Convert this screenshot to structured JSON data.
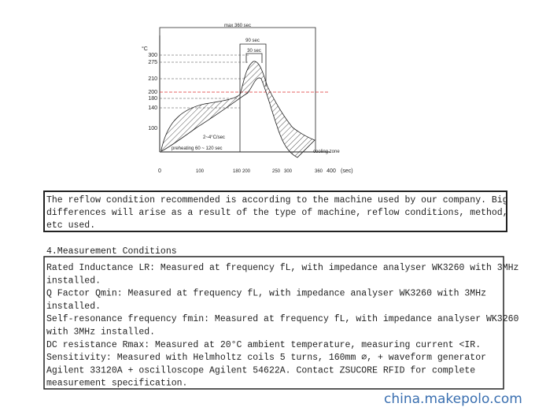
{
  "diagram": {
    "max_label": "max 360 sec",
    "p90_label": "90 sec",
    "p30_label": "30 sec",
    "y_unit": "°C",
    "y_labels": [
      "300",
      "275",
      "210",
      "200",
      "180",
      "140",
      "100"
    ],
    "x_labels": [
      "0",
      "100",
      "180",
      "200",
      "250",
      "300",
      "360",
      "400"
    ],
    "x_unit": "(sec)",
    "rate_label": "2~4°C/sec",
    "preheat_label": "preheating  60 ~ 120 sec",
    "cooling_label": "cooling zone"
  },
  "notice": {
    "lines": [
      "The reflow condition recommended is according to the machine used by our company. Big",
      "differences will arise as a result of the type of machine, reflow conditions, method,",
      "etc used."
    ]
  },
  "section_title": "4.Measurement  Conditions",
  "conditions": {
    "lines": [
      "Rated Inductance LR: Measured at frequency fL, with impedance analyser WK3260 with 3MHz",
      "installed.",
      "Q Factor Qmin: Measured at frequency fL, with impedance analyser WK3260 with 3MHz",
      "installed.",
      "Self-resonance frequency fmin:  Measured at frequency fL, with impedance analyser WK3260",
      "with 3MHz installed.",
      "DC resistance Rmax: Measured at 20°C ambient temperature, measuring current <IR.",
      "Sensitivity: Measured with Helmholtz coils 5 turns, 160mm ⌀, + waveform generator",
      "Agilent 33120A + oscilloscope Agilent 54622A. Contact ZSUCORE RFID for complete",
      "measurement specification."
    ]
  },
  "watermark": "china.makepolo.com"
}
